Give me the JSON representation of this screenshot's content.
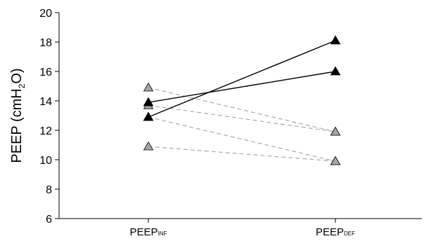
{
  "chart_data": {
    "type": "line",
    "ylabel_main": "PEEP (cmH",
    "ylabel_sub": "2",
    "ylabel_end": "O)",
    "xlabel": "",
    "ylim": [
      6,
      20
    ],
    "yticks": [
      "6",
      "8",
      "10",
      "12",
      "14",
      "16",
      "18",
      "20"
    ],
    "categories": [
      {
        "main": "PEEP",
        "sub": "INF"
      },
      {
        "main": "PEEP",
        "sub": "DEF"
      }
    ],
    "colors": {
      "solid": "#000000",
      "dashed": "#aaaaaa",
      "gray_fill": "#a6a6a6"
    },
    "series": [
      {
        "style": "solid",
        "values": [
          13.9,
          16.0
        ]
      },
      {
        "style": "solid",
        "values": [
          12.9,
          18.1
        ]
      },
      {
        "style": "dashed",
        "values": [
          14.9,
          11.9
        ]
      },
      {
        "style": "dashed",
        "values": [
          13.7,
          11.9
        ]
      },
      {
        "style": "dashed",
        "values": [
          12.9,
          9.9
        ]
      },
      {
        "style": "dashed",
        "values": [
          10.9,
          9.9
        ]
      }
    ]
  }
}
